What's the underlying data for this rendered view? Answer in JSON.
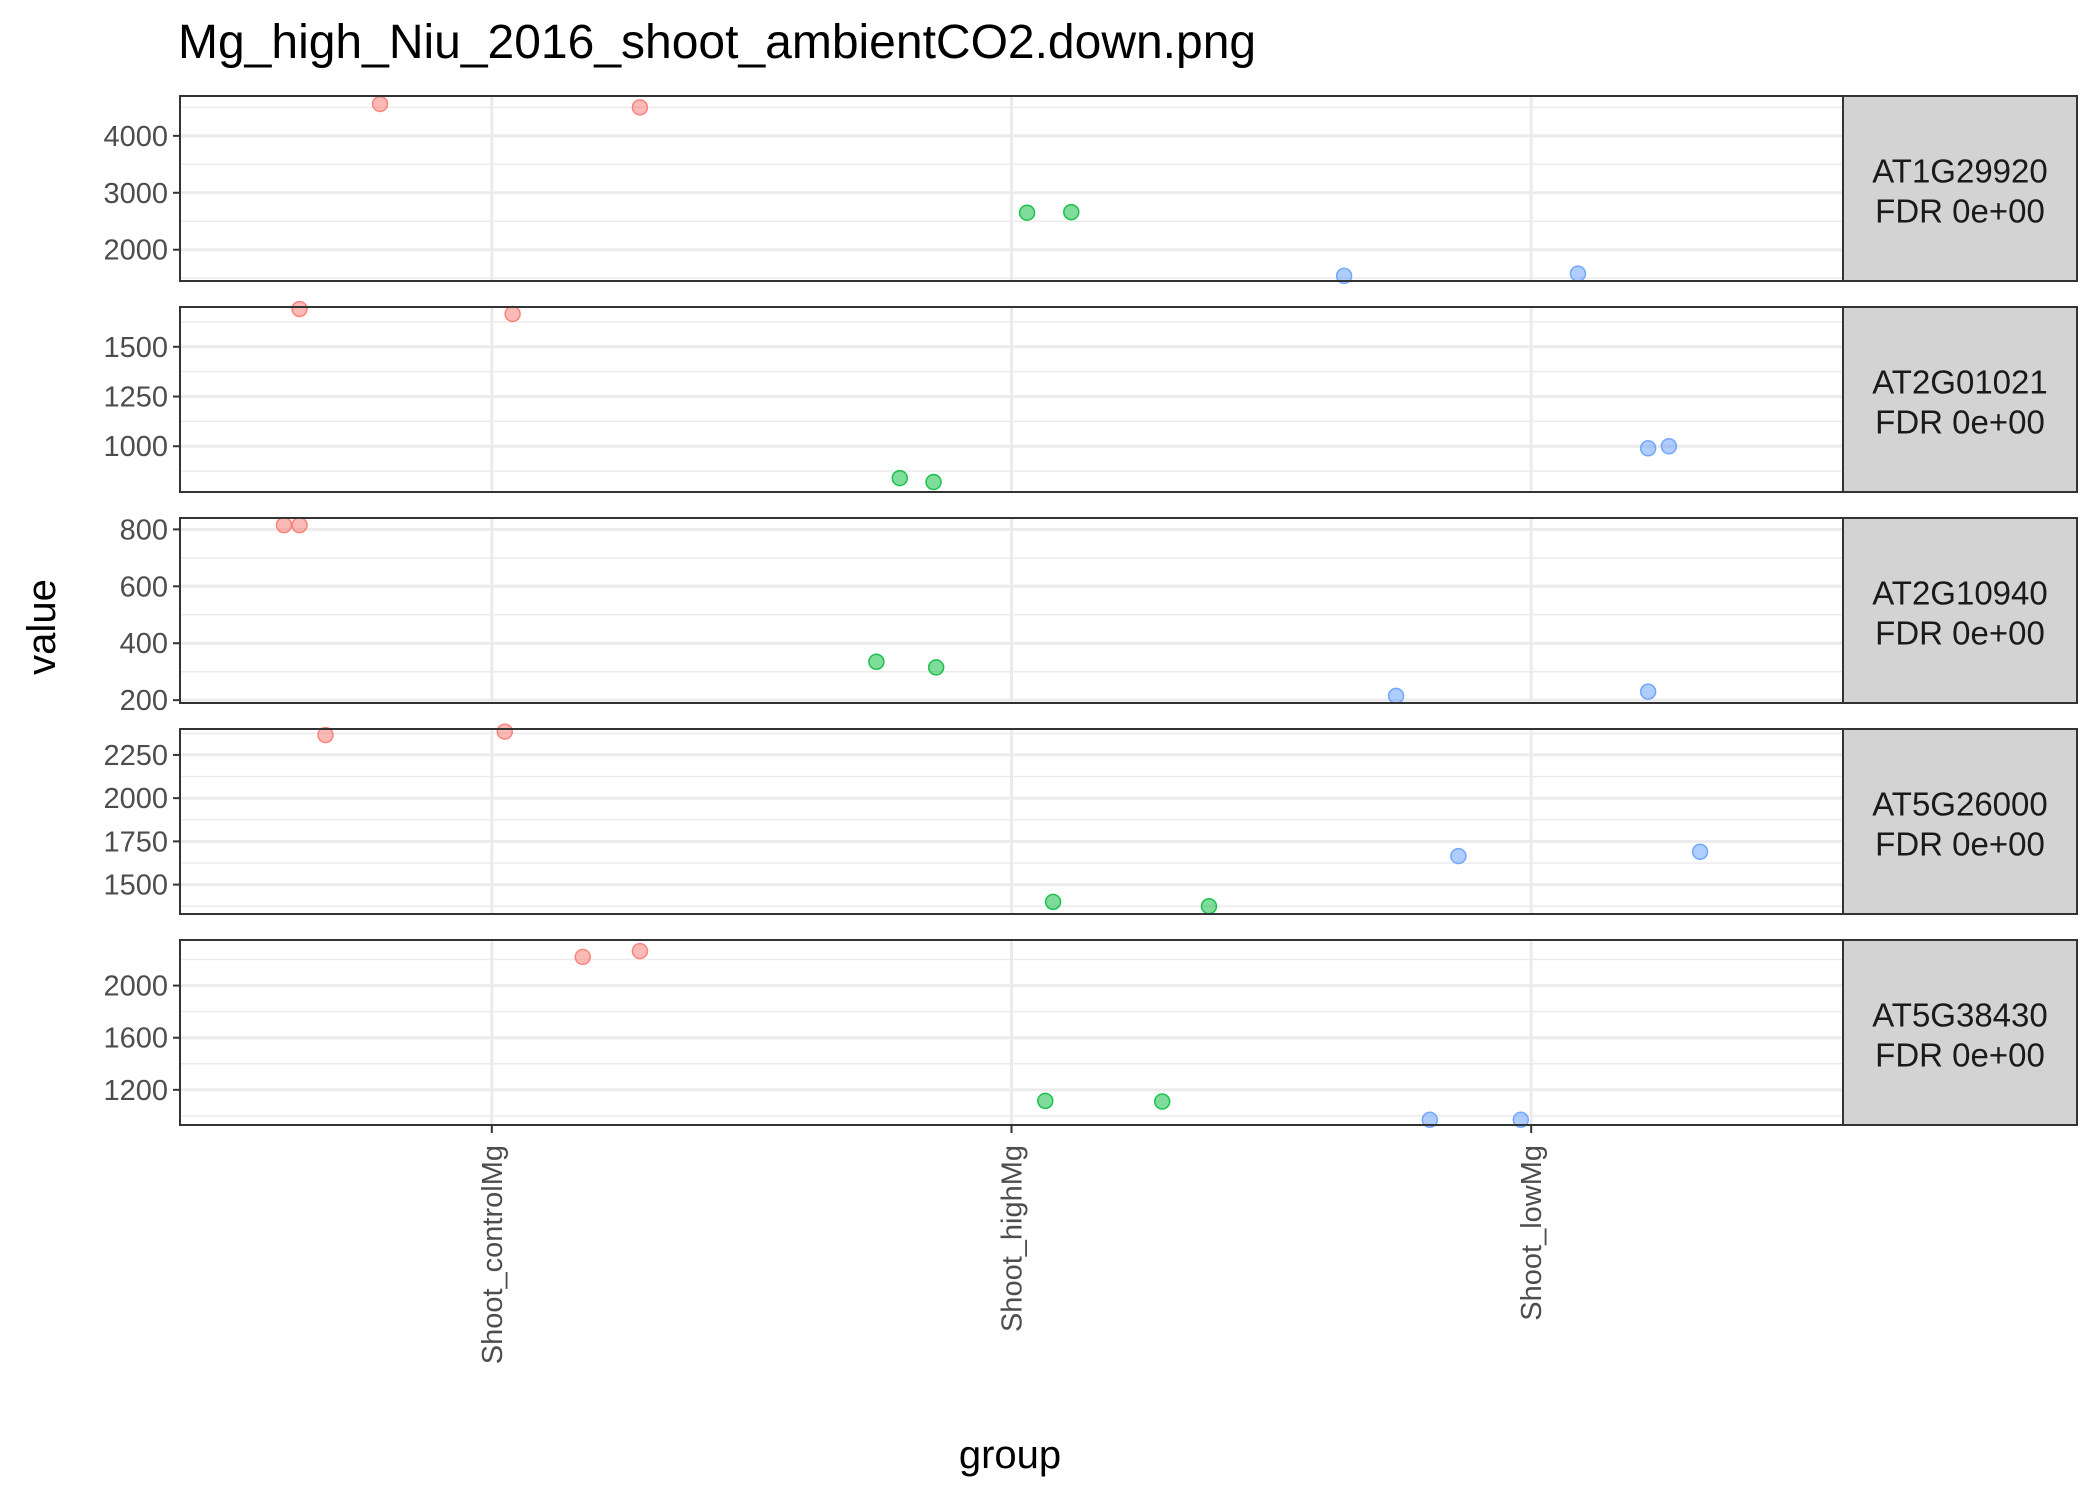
{
  "chart_data": {
    "type": "scatter",
    "title": "Mg_high_Niu_2016_shoot_ambientCO2.down.png",
    "xlabel": "group",
    "ylabel": "value",
    "categories": [
      "Shoot_controlMg",
      "Shoot_highMg",
      "Shoot_lowMg"
    ],
    "colors": {
      "Shoot_controlMg": "#F8766D",
      "Shoot_highMg": "#00BA38",
      "Shoot_lowMg": "#619CFF"
    },
    "grid": true,
    "legend": "none",
    "panels": [
      {
        "gene": "AT1G29920",
        "fdr": "FDR 0e+00",
        "ylim": [
          1450,
          4700
        ],
        "yticks": [
          2000,
          3000,
          4000
        ],
        "ytick_labels": [
          "2000",
          "3000",
          "4000"
        ],
        "points": [
          {
            "group": "Shoot_controlMg",
            "x": 0.785,
            "value": 4560
          },
          {
            "group": "Shoot_controlMg",
            "x": 1.285,
            "value": 4500
          },
          {
            "group": "Shoot_highMg",
            "x": 2.03,
            "value": 2650
          },
          {
            "group": "Shoot_highMg",
            "x": 2.115,
            "value": 2660
          },
          {
            "group": "Shoot_lowMg",
            "x": 2.64,
            "value": 1540
          },
          {
            "group": "Shoot_lowMg",
            "x": 3.09,
            "value": 1580
          }
        ]
      },
      {
        "gene": "AT2G01021",
        "fdr": "FDR 0e+00",
        "ylim": [
          770,
          1700
        ],
        "yticks": [
          1000,
          1250,
          1500
        ],
        "ytick_labels": [
          "1000",
          "1250",
          "1500"
        ],
        "points": [
          {
            "group": "Shoot_controlMg",
            "x": 0.63,
            "value": 1690
          },
          {
            "group": "Shoot_controlMg",
            "x": 1.04,
            "value": 1665
          },
          {
            "group": "Shoot_highMg",
            "x": 1.785,
            "value": 840
          },
          {
            "group": "Shoot_highMg",
            "x": 1.85,
            "value": 820
          },
          {
            "group": "Shoot_lowMg",
            "x": 3.225,
            "value": 990
          },
          {
            "group": "Shoot_lowMg",
            "x": 3.265,
            "value": 1000
          }
        ]
      },
      {
        "gene": "AT2G10940",
        "fdr": "FDR 0e+00",
        "ylim": [
          190,
          840
        ],
        "yticks": [
          200,
          400,
          600,
          800
        ],
        "ytick_labels": [
          "200",
          "400",
          "600",
          "800"
        ],
        "points": [
          {
            "group": "Shoot_controlMg",
            "x": 0.6,
            "value": 815
          },
          {
            "group": "Shoot_controlMg",
            "x": 0.63,
            "value": 815
          },
          {
            "group": "Shoot_highMg",
            "x": 1.74,
            "value": 335
          },
          {
            "group": "Shoot_highMg",
            "x": 1.855,
            "value": 315
          },
          {
            "group": "Shoot_lowMg",
            "x": 2.74,
            "value": 215
          },
          {
            "group": "Shoot_lowMg",
            "x": 3.225,
            "value": 230
          }
        ]
      },
      {
        "gene": "AT5G26000",
        "fdr": "FDR 0e+00",
        "ylim": [
          1330,
          2400
        ],
        "yticks": [
          1500,
          1750,
          2000,
          2250
        ],
        "ytick_labels": [
          "1500",
          "1750",
          "2000",
          "2250"
        ],
        "points": [
          {
            "group": "Shoot_controlMg",
            "x": 0.68,
            "value": 2365
          },
          {
            "group": "Shoot_controlMg",
            "x": 1.025,
            "value": 2385
          },
          {
            "group": "Shoot_highMg",
            "x": 2.08,
            "value": 1400
          },
          {
            "group": "Shoot_highMg",
            "x": 2.38,
            "value": 1375
          },
          {
            "group": "Shoot_lowMg",
            "x": 2.86,
            "value": 1665
          },
          {
            "group": "Shoot_lowMg",
            "x": 3.325,
            "value": 1690
          }
        ]
      },
      {
        "gene": "AT5G38430",
        "fdr": "FDR 0e+00",
        "ylim": [
          930,
          2350
        ],
        "yticks": [
          1200,
          1600,
          2000
        ],
        "ytick_labels": [
          "1200",
          "1600",
          "2000"
        ],
        "points": [
          {
            "group": "Shoot_controlMg",
            "x": 1.175,
            "value": 2220
          },
          {
            "group": "Shoot_controlMg",
            "x": 1.285,
            "value": 2265
          },
          {
            "group": "Shoot_highMg",
            "x": 2.065,
            "value": 1115
          },
          {
            "group": "Shoot_highMg",
            "x": 2.29,
            "value": 1110
          },
          {
            "group": "Shoot_lowMg",
            "x": 2.805,
            "value": 970
          },
          {
            "group": "Shoot_lowMg",
            "x": 2.98,
            "value": 970
          }
        ]
      }
    ]
  }
}
